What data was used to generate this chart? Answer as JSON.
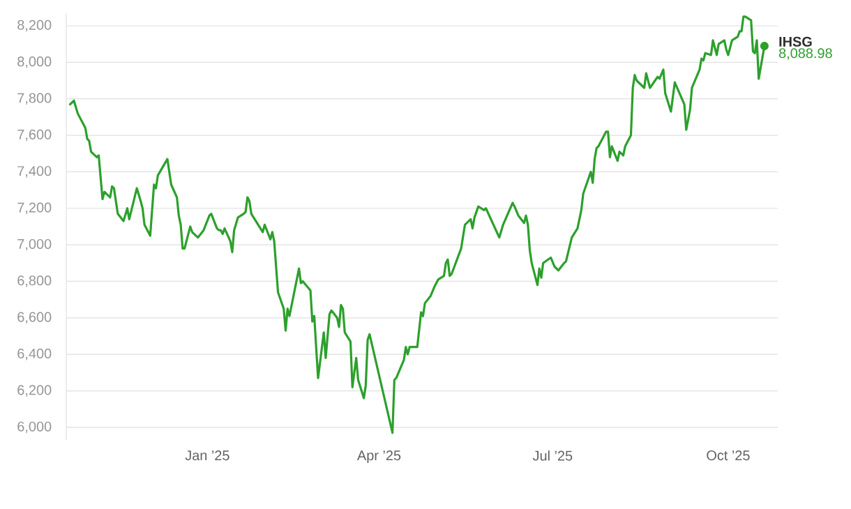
{
  "chart_data": {
    "type": "line",
    "x": [
      "2024-10-21",
      "2024-10-23",
      "2024-10-25",
      "2024-10-29",
      "2024-10-30",
      "2024-10-31",
      "2024-11-01",
      "2024-11-04",
      "2024-11-05",
      "2024-11-07",
      "2024-11-08",
      "2024-11-11",
      "2024-11-12",
      "2024-11-13",
      "2024-11-15",
      "2024-11-18",
      "2024-11-20",
      "2024-11-21",
      "2024-11-25",
      "2024-11-27",
      "2024-11-28",
      "2024-11-29",
      "2024-12-02",
      "2024-12-04",
      "2024-12-05",
      "2024-12-06",
      "2024-12-11",
      "2024-12-13",
      "2024-12-16",
      "2024-12-17",
      "2024-12-18",
      "2024-12-19",
      "2024-12-20",
      "2024-12-23",
      "2024-12-24",
      "2024-12-27",
      "2024-12-30",
      "2025-01-02",
      "2025-01-03",
      "2025-01-06",
      "2025-01-07",
      "2025-01-08",
      "2025-01-09",
      "2025-01-10",
      "2025-01-13",
      "2025-01-14",
      "2025-01-15",
      "2025-01-17",
      "2025-01-20",
      "2025-01-21",
      "2025-01-22",
      "2025-01-23",
      "2025-01-24",
      "2025-01-30",
      "2025-01-31",
      "2025-02-03",
      "2025-02-04",
      "2025-02-05",
      "2025-02-07",
      "2025-02-10",
      "2025-02-11",
      "2025-02-12",
      "2025-02-13",
      "2025-02-18",
      "2025-02-19",
      "2025-02-20",
      "2025-02-24",
      "2025-02-25",
      "2025-02-26",
      "2025-02-28",
      "2025-03-03",
      "2025-03-04",
      "2025-03-06",
      "2025-03-07",
      "2025-03-10",
      "2025-03-11",
      "2025-03-12",
      "2025-03-13",
      "2025-03-14",
      "2025-03-17",
      "2025-03-18",
      "2025-03-20",
      "2025-03-21",
      "2025-03-24",
      "2025-03-25",
      "2025-03-26",
      "2025-03-27",
      "2025-04-08",
      "2025-04-09",
      "2025-04-10",
      "2025-04-14",
      "2025-04-15",
      "2025-04-16",
      "2025-04-17",
      "2025-04-21",
      "2025-04-23",
      "2025-04-24",
      "2025-04-25",
      "2025-04-28",
      "2025-04-30",
      "2025-05-02",
      "2025-05-05",
      "2025-05-06",
      "2025-05-07",
      "2025-05-08",
      "2025-05-09",
      "2025-05-14",
      "2025-05-16",
      "2025-05-19",
      "2025-05-20",
      "2025-05-21",
      "2025-05-23",
      "2025-05-26",
      "2025-05-27",
      "2025-06-03",
      "2025-06-05",
      "2025-06-10",
      "2025-06-11",
      "2025-06-13",
      "2025-06-16",
      "2025-06-17",
      "2025-06-18",
      "2025-06-19",
      "2025-06-20",
      "2025-06-23",
      "2025-06-24",
      "2025-06-25",
      "2025-06-26",
      "2025-06-30",
      "2025-07-02",
      "2025-07-04",
      "2025-07-07",
      "2025-07-08",
      "2025-07-11",
      "2025-07-14",
      "2025-07-16",
      "2025-07-17",
      "2025-07-21",
      "2025-07-22",
      "2025-07-23",
      "2025-07-24",
      "2025-07-25",
      "2025-07-29",
      "2025-07-30",
      "2025-07-31",
      "2025-08-01",
      "2025-08-04",
      "2025-08-05",
      "2025-08-07",
      "2025-08-08",
      "2025-08-11",
      "2025-08-12",
      "2025-08-13",
      "2025-08-14",
      "2025-08-18",
      "2025-08-19",
      "2025-08-21",
      "2025-08-25",
      "2025-08-26",
      "2025-08-28",
      "2025-08-29",
      "2025-09-01",
      "2025-09-03",
      "2025-09-08",
      "2025-09-09",
      "2025-09-11",
      "2025-09-12",
      "2025-09-16",
      "2025-09-17",
      "2025-09-18",
      "2025-09-19",
      "2025-09-22",
      "2025-09-23",
      "2025-09-25",
      "2025-09-26",
      "2025-09-29",
      "2025-09-30",
      "2025-10-01",
      "2025-10-03",
      "2025-10-06",
      "2025-10-07",
      "2025-10-08",
      "2025-10-09",
      "2025-10-10",
      "2025-10-13",
      "2025-10-14",
      "2025-10-15",
      "2025-10-16",
      "2025-10-17",
      "2025-10-20"
    ],
    "series": [
      {
        "name": "IHSG",
        "color": "#2ca02c",
        "values": [
          7770,
          7790,
          7720,
          7640,
          7580,
          7570,
          7510,
          7480,
          7490,
          7250,
          7290,
          7260,
          7320,
          7310,
          7170,
          7130,
          7200,
          7140,
          7310,
          7240,
          7200,
          7110,
          7050,
          7330,
          7310,
          7380,
          7470,
          7330,
          7260,
          7160,
          7110,
          6980,
          6980,
          7100,
          7070,
          7040,
          7080,
          7160,
          7170,
          7090,
          7080,
          7080,
          7060,
          7090,
          7020,
          6960,
          7080,
          7150,
          7170,
          7180,
          7260,
          7240,
          7170,
          7070,
          7110,
          7030,
          7070,
          7020,
          6740,
          6650,
          6530,
          6650,
          6610,
          6870,
          6790,
          6800,
          6750,
          6580,
          6610,
          6270,
          6520,
          6380,
          6620,
          6640,
          6600,
          6550,
          6670,
          6650,
          6520,
          6470,
          6220,
          6380,
          6260,
          6160,
          6230,
          6480,
          6510,
          5970,
          6260,
          6270,
          6370,
          6440,
          6400,
          6440,
          6440,
          6630,
          6610,
          6680,
          6720,
          6770,
          6810,
          6830,
          6900,
          6920,
          6830,
          6840,
          6980,
          7110,
          7140,
          7090,
          7150,
          7210,
          7190,
          7200,
          7040,
          7110,
          7230,
          7210,
          7160,
          7120,
          7160,
          7110,
          6970,
          6900,
          6780,
          6870,
          6820,
          6900,
          6930,
          6880,
          6860,
          6900,
          6910,
          7040,
          7090,
          7190,
          7280,
          7400,
          7340,
          7470,
          7530,
          7540,
          7620,
          7620,
          7480,
          7540,
          7460,
          7510,
          7490,
          7540,
          7600,
          7860,
          7930,
          7900,
          7860,
          7940,
          7860,
          7920,
          7910,
          7960,
          7830,
          7730,
          7890,
          7770,
          7630,
          7740,
          7860,
          7960,
          8020,
          8010,
          8050,
          8040,
          8120,
          8040,
          8100,
          8120,
          8070,
          8040,
          8120,
          8140,
          8170,
          8170,
          8250,
          8250,
          8230,
          8060,
          8050,
          8120,
          7910,
          8088.98
        ]
      }
    ],
    "annotations": [
      {
        "text": "8,088.98",
        "x": "2025-10-20",
        "y": 8088.98
      }
    ],
    "xlim": [
      "2024-10-19",
      "2025-10-27"
    ],
    "xticks": [
      {
        "value": "2025-01-01",
        "label": "Jan ’25"
      },
      {
        "value": "2025-04-01",
        "label": "Apr ’25"
      },
      {
        "value": "2025-07-01",
        "label": "Jul ’25"
      },
      {
        "value": "2025-10-01",
        "label": "Oct ’25"
      }
    ],
    "ylim": [
      5930,
      8270
    ],
    "yticks": [
      {
        "value": 6000,
        "label": "6,000"
      },
      {
        "value": 6200,
        "label": "6,200"
      },
      {
        "value": 6400,
        "label": "6,400"
      },
      {
        "value": 6600,
        "label": "6,600"
      },
      {
        "value": 6800,
        "label": "6,800"
      },
      {
        "value": 7000,
        "label": "7,000"
      },
      {
        "value": 7200,
        "label": "7,200"
      },
      {
        "value": 7400,
        "label": "7,400"
      },
      {
        "value": 7600,
        "label": "7,600"
      },
      {
        "value": 7800,
        "label": "7,800"
      },
      {
        "value": 8000,
        "label": "8,000"
      },
      {
        "value": 8200,
        "label": "8,200"
      }
    ],
    "grid": "y",
    "legend": false,
    "line_style": "solid"
  }
}
